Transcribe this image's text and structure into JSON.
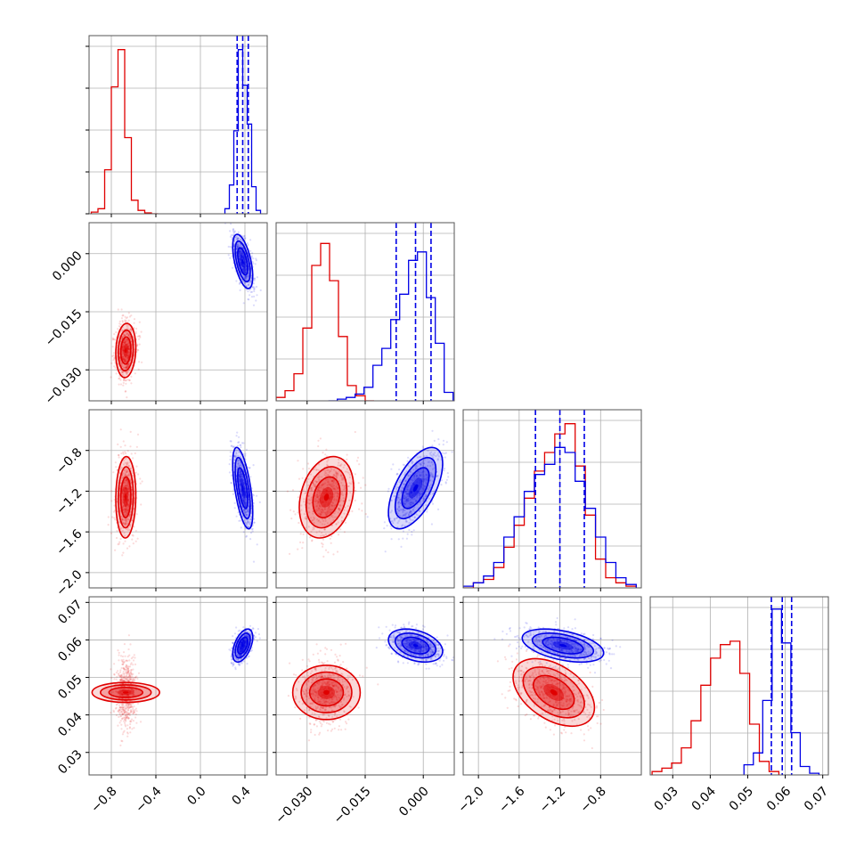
{
  "colors": {
    "series_a": "#e00000",
    "series_b": "#0000e6",
    "grid": "#b0b0b0"
  },
  "chart_data": {
    "type": "corner",
    "grid": true,
    "parameters": [
      {
        "range": [
          -1.0,
          0.6
        ],
        "ticks": [
          -0.8,
          -0.4,
          0.0,
          0.4
        ],
        "tick_labels": [
          "−0.8",
          "−0.4",
          "0.0",
          "0.4"
        ]
      },
      {
        "range": [
          -0.038,
          0.008
        ],
        "ticks": [
          -0.03,
          -0.015,
          0.0
        ],
        "tick_labels": [
          "−0.030",
          "−0.015",
          "0.000"
        ]
      },
      {
        "range": [
          -2.15,
          -0.4
        ],
        "ticks": [
          -2.0,
          -1.6,
          -1.2,
          -0.8
        ],
        "tick_labels": [
          "−2.0",
          "−1.6",
          "−1.2",
          "−0.8"
        ]
      },
      {
        "range": [
          0.024,
          0.0715
        ],
        "ticks": [
          0.03,
          0.04,
          0.05,
          0.06,
          0.07
        ],
        "tick_labels": [
          "0.03",
          "0.04",
          "0.05",
          "0.06",
          "0.07"
        ]
      }
    ],
    "series": [
      {
        "color": "#e00000",
        "mean": [
          -0.67,
          -0.025,
          -1.26,
          0.046
        ],
        "sd": [
          0.045,
          0.0035,
          0.2,
          0.0045
        ],
        "corr": [
          [
            1,
            0.1,
            0.05,
            0.0
          ],
          [
            0.1,
            1,
            0.25,
            0.0
          ],
          [
            0.05,
            0.25,
            1,
            -0.45
          ],
          [
            0.0,
            0.0,
            -0.45,
            1
          ]
        ],
        "hist": [
          {
            "edges": [
              -0.98,
              -0.92,
              -0.86,
              -0.8,
              -0.74,
              -0.68,
              -0.62,
              -0.56,
              -0.5,
              -0.44,
              -0.38
            ],
            "counts": [
              0.01,
              0.03,
              0.26,
              0.75,
              0.97,
              0.45,
              0.08,
              0.02,
              0.005,
              0.0
            ]
          },
          {
            "edges": [
              -0.038,
              -0.0357,
              -0.0334,
              -0.0311,
              -0.0288,
              -0.0265,
              -0.0242,
              -0.0219,
              -0.0196,
              -0.0173,
              -0.015,
              -0.0127
            ],
            "counts": [
              0.02,
              0.06,
              0.16,
              0.43,
              0.8,
              0.93,
              0.71,
              0.38,
              0.09,
              0.03,
              0.0
            ]
          },
          {
            "edges": [
              -2.15,
              -2.05,
              -1.95,
              -1.85,
              -1.75,
              -1.65,
              -1.55,
              -1.45,
              -1.35,
              -1.25,
              -1.15,
              -1.05,
              -0.95,
              -0.85,
              -0.75,
              -0.65,
              -0.55,
              -0.45
            ],
            "counts": [
              0.0,
              0.03,
              0.05,
              0.12,
              0.24,
              0.37,
              0.53,
              0.69,
              0.8,
              0.91,
              0.97,
              0.72,
              0.43,
              0.17,
              0.06,
              0.03,
              0.01
            ]
          },
          {
            "edges": [
              0.0245,
              0.0271,
              0.0297,
              0.0323,
              0.0349,
              0.0375,
              0.0401,
              0.0427,
              0.0453,
              0.0479,
              0.0505,
              0.0531,
              0.0557,
              0.0583
            ],
            "counts": [
              0.02,
              0.04,
              0.07,
              0.16,
              0.32,
              0.53,
              0.69,
              0.77,
              0.79,
              0.6,
              0.3,
              0.08,
              0.02
            ]
          }
        ]
      },
      {
        "color": "#0000e6",
        "mean": [
          0.38,
          -0.002,
          -1.17,
          0.0585
        ],
        "sd": [
          0.045,
          0.0035,
          0.2,
          0.0022
        ],
        "corr": [
          [
            1,
            -0.55,
            -0.6,
            0.5
          ],
          [
            -0.55,
            1,
            0.6,
            -0.35
          ],
          [
            -0.6,
            0.6,
            1,
            -0.45
          ],
          [
            0.5,
            -0.35,
            -0.45,
            1
          ]
        ],
        "quantiles": [
          [
            0.33,
            0.38,
            0.43
          ],
          [
            -0.007,
            -0.002,
            0.002
          ],
          [
            -1.44,
            -1.2,
            -0.96
          ],
          [
            0.0563,
            0.0592,
            0.0617
          ]
        ],
        "hist": [
          {
            "edges": [
              0.22,
              0.26,
              0.3,
              0.34,
              0.38,
              0.42,
              0.46,
              0.5,
              0.54
            ],
            "counts": [
              0.03,
              0.17,
              0.49,
              0.97,
              0.76,
              0.53,
              0.16,
              0.02
            ]
          },
          {
            "edges": [
              -0.0245,
              -0.0222,
              -0.0199,
              -0.0176,
              -0.0153,
              -0.013,
              -0.0107,
              -0.0084,
              -0.0061,
              -0.0038,
              -0.0015,
              0.0008,
              0.0031,
              0.0054,
              0.0077
            ],
            "counts": [
              0.0,
              0.01,
              0.02,
              0.04,
              0.08,
              0.21,
              0.31,
              0.48,
              0.63,
              0.83,
              0.88,
              0.61,
              0.34,
              0.05
            ]
          },
          {
            "edges": [
              -2.15,
              -2.05,
              -1.95,
              -1.85,
              -1.75,
              -1.65,
              -1.55,
              -1.45,
              -1.35,
              -1.25,
              -1.15,
              -1.05,
              -0.95,
              -0.85,
              -0.75,
              -0.65,
              -0.55,
              -0.45
            ],
            "counts": [
              0.01,
              0.03,
              0.07,
              0.15,
              0.3,
              0.42,
              0.57,
              0.67,
              0.73,
              0.83,
              0.8,
              0.63,
              0.47,
              0.3,
              0.15,
              0.06,
              0.02
            ]
          },
          {
            "edges": [
              0.049,
              0.0515,
              0.054,
              0.0565,
              0.059,
              0.0615,
              0.064,
              0.0665,
              0.069
            ],
            "counts": [
              0.06,
              0.13,
              0.44,
              0.98,
              0.78,
              0.25,
              0.05,
              0.01
            ]
          }
        ]
      }
    ]
  }
}
